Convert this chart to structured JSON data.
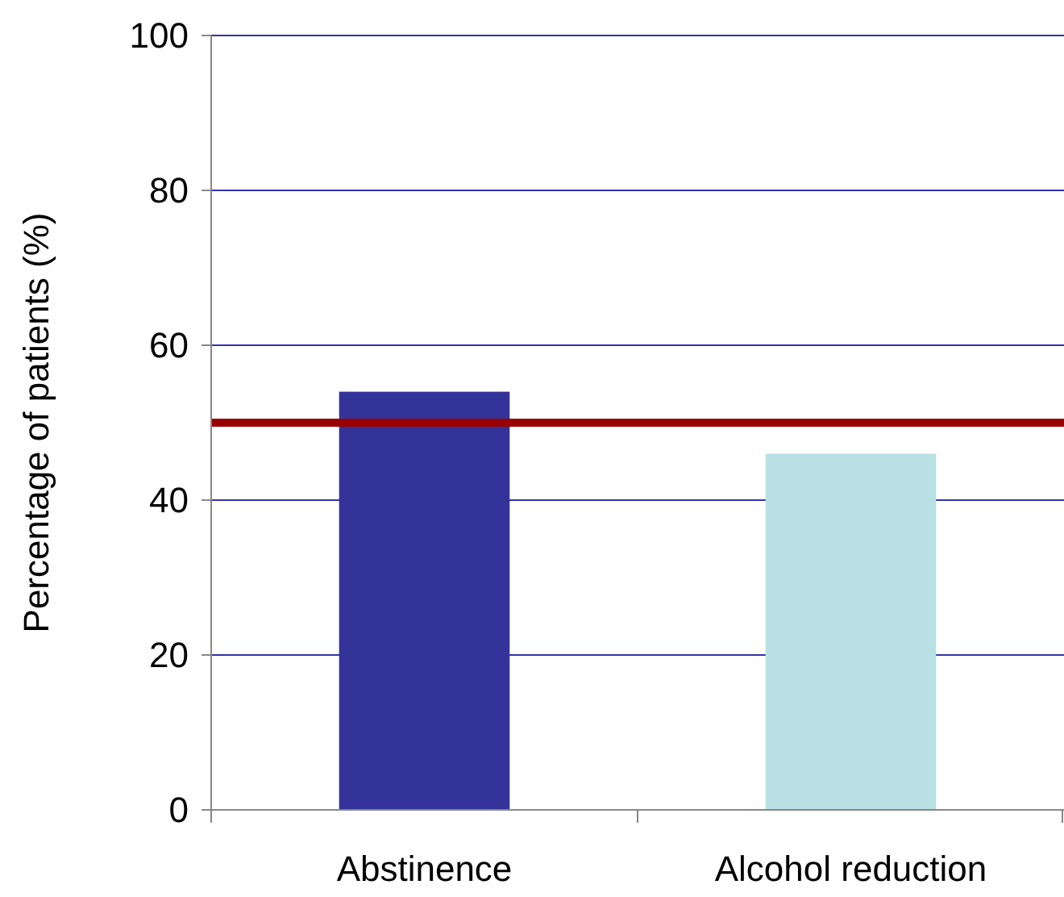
{
  "chart_data": {
    "type": "bar",
    "ylabel": "Percentage of patients (%)",
    "categories": [
      "Abstinence",
      "Alcohol reduction"
    ],
    "values": [
      54,
      46
    ],
    "colors": [
      "#333399",
      "#b9e1e4"
    ],
    "ylim": [
      0,
      100
    ],
    "yticks": [
      0,
      20,
      40,
      60,
      80,
      100
    ],
    "grid": "y",
    "ref_lines": [
      {
        "axis": "y",
        "value": 50,
        "color": "#990000"
      }
    ]
  }
}
